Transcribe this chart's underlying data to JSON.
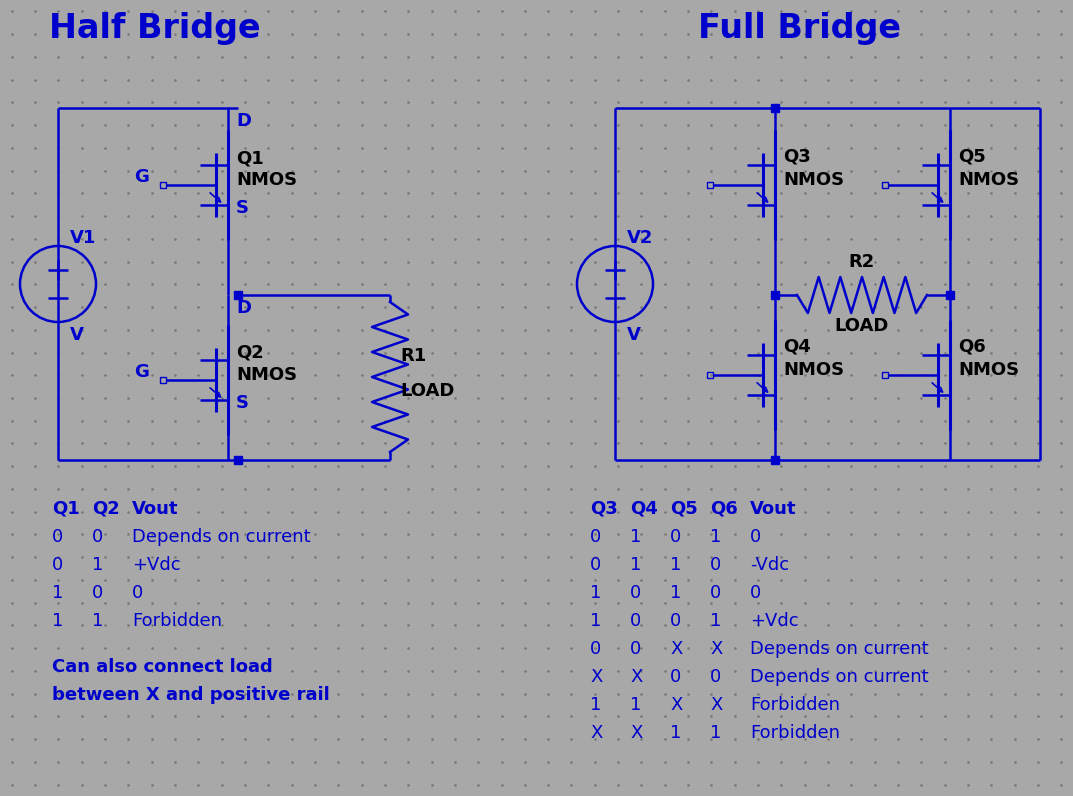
{
  "bg_color": "#a8a8a8",
  "line_color": "#0000cc",
  "text_color": "#0000cc",
  "black_text": "#000000",
  "title_hb": "Half Bridge",
  "title_fb": "Full Bridge",
  "title_fontsize": 24,
  "label_fontsize": 13,
  "table_fontsize": 13,
  "note_fontsize": 13,
  "hb_table": [
    [
      "Q1",
      "Q2",
      "Vout"
    ],
    [
      "0",
      "0",
      "Depends on current"
    ],
    [
      "0",
      "1",
      "+Vdc"
    ],
    [
      "1",
      "0",
      "0"
    ],
    [
      "1",
      "1",
      "Forbidden"
    ]
  ],
  "fb_table": [
    [
      "Q3",
      "Q4",
      "Q5",
      "Q6",
      "Vout"
    ],
    [
      "0",
      "1",
      "0",
      "1",
      "0"
    ],
    [
      "0",
      "1",
      "1",
      "0",
      "-Vdc"
    ],
    [
      "1",
      "0",
      "1",
      "0",
      "0"
    ],
    [
      "1",
      "0",
      "0",
      "1",
      "+Vdc"
    ],
    [
      "0",
      "0",
      "X",
      "X",
      "Depends on current"
    ],
    [
      "X",
      "X",
      "0",
      "0",
      "Depends on current"
    ],
    [
      "1",
      "1",
      "X",
      "X",
      "Forbidden"
    ],
    [
      "X",
      "X",
      "1",
      "1",
      "Forbidden"
    ]
  ],
  "hb_note": [
    "Can also connect load",
    "between X and positive rail"
  ]
}
